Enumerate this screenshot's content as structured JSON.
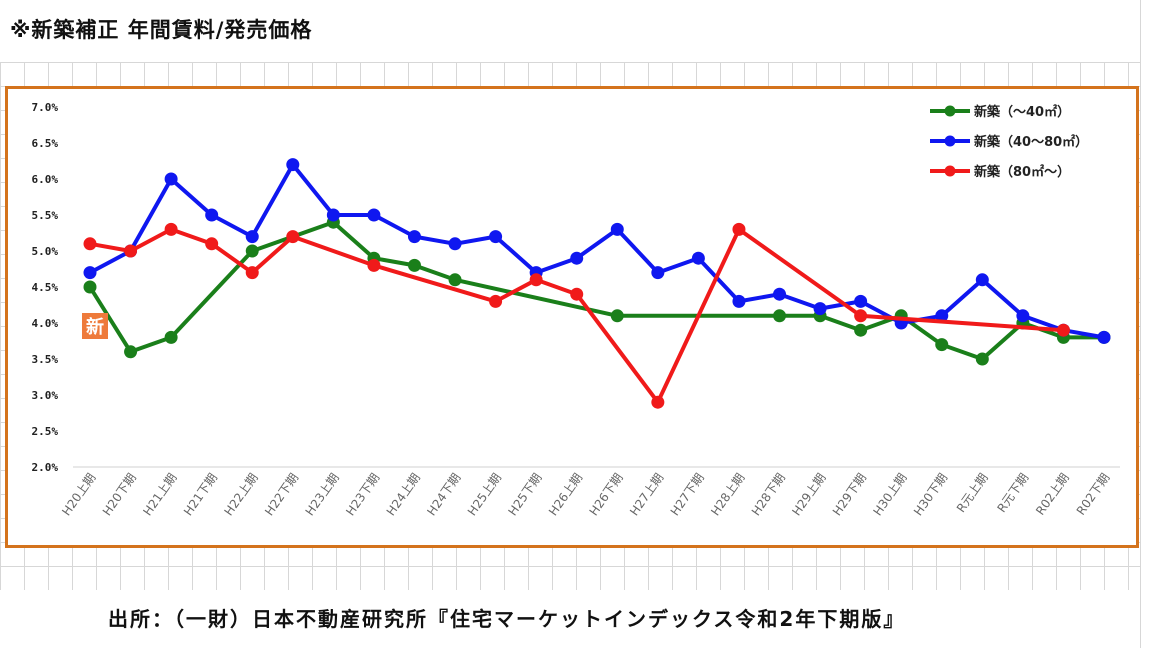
{
  "page": {
    "title": "※新築補正 年間賃料/発売価格",
    "source": "出所：（一財）日本不動産研究所『住宅マーケットインデックス令和2年下期版』",
    "badge": "新"
  },
  "chart_data": {
    "type": "line",
    "title": "",
    "xlabel": "",
    "ylabel": "",
    "ylim": [
      2.0,
      7.0
    ],
    "yticks": [
      "2.0%",
      "2.5%",
      "3.0%",
      "3.5%",
      "4.0%",
      "4.5%",
      "5.0%",
      "5.5%",
      "6.0%",
      "6.5%",
      "7.0%"
    ],
    "grid": true,
    "legend": "top-right",
    "categories": [
      "H20上期",
      "H20下期",
      "H21上期",
      "H21下期",
      "H22上期",
      "H22下期",
      "H23上期",
      "H23下期",
      "H24上期",
      "H24下期",
      "H25上期",
      "H25下期",
      "H26上期",
      "H26下期",
      "H27上期",
      "H27下期",
      "H28上期",
      "H28下期",
      "H29上期",
      "H29下期",
      "H30上期",
      "H30下期",
      "R元上期",
      "R元下期",
      "R02上期",
      "R02下期"
    ],
    "series": [
      {
        "name": "新築（～40㎡）",
        "color": "#1a7f1a",
        "values": [
          4.5,
          3.6,
          3.8,
          null,
          5.0,
          null,
          5.4,
          4.9,
          4.8,
          4.6,
          null,
          null,
          null,
          4.1,
          null,
          null,
          null,
          4.1,
          4.1,
          3.9,
          4.1,
          3.7,
          3.5,
          4.0,
          3.8,
          3.8
        ]
      },
      {
        "name": "新築（40～80㎡）",
        "color": "#0f17f0",
        "values": [
          4.7,
          5.0,
          6.0,
          5.5,
          5.2,
          6.2,
          5.5,
          5.5,
          5.2,
          5.1,
          5.2,
          4.7,
          4.9,
          5.3,
          4.7,
          4.9,
          4.3,
          4.4,
          4.2,
          4.3,
          4.0,
          4.1,
          4.6,
          4.1,
          3.9,
          3.8
        ]
      },
      {
        "name": "新築（80㎡～）",
        "color": "#f01a1a",
        "values": [
          5.1,
          5.0,
          5.3,
          5.1,
          4.7,
          5.2,
          null,
          4.8,
          null,
          null,
          4.3,
          4.6,
          4.4,
          null,
          2.9,
          null,
          5.3,
          null,
          null,
          4.1,
          null,
          null,
          null,
          null,
          3.9,
          null
        ]
      }
    ]
  }
}
